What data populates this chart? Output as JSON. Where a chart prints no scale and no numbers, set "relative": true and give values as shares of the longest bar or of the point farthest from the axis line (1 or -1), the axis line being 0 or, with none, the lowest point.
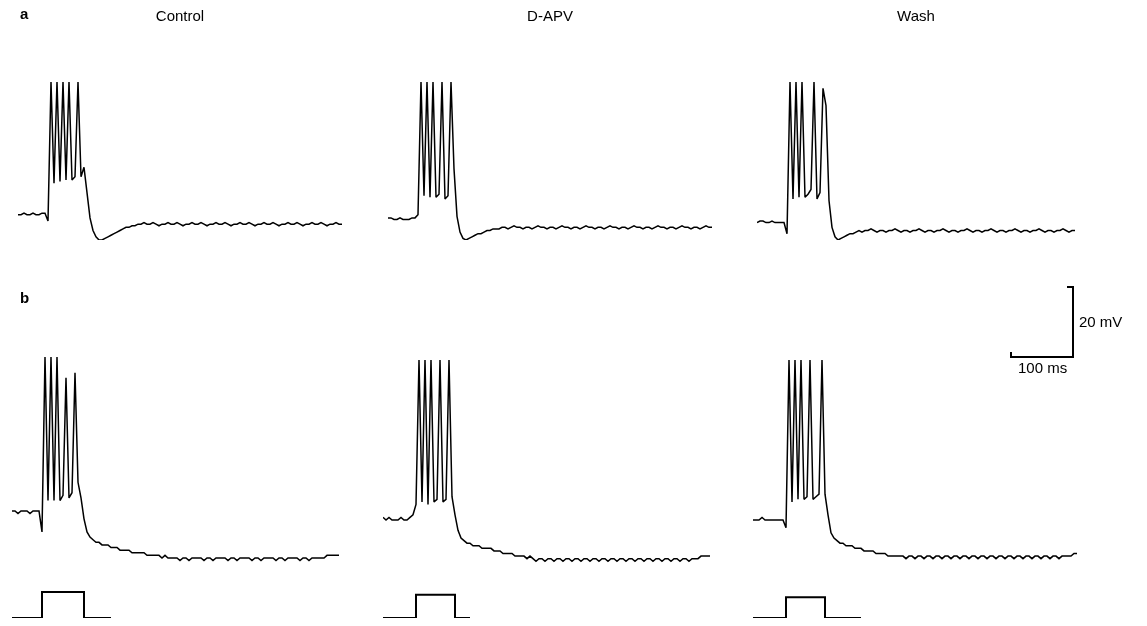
{
  "chart_data": [
    {
      "type": "line",
      "title": "Control",
      "relative": true,
      "annotations": [
        "a"
      ],
      "categories": [
        null,
        null,
        null,
        null,
        null,
        null,
        null,
        null,
        null,
        null,
        null,
        null,
        null,
        null,
        null,
        null,
        null,
        null,
        null,
        null,
        null,
        null,
        null,
        null,
        null,
        null,
        null,
        null,
        null,
        null,
        null,
        null,
        null,
        null,
        null,
        null,
        null,
        null,
        null,
        null,
        null,
        null,
        null,
        null,
        null,
        null,
        null,
        null,
        null,
        null,
        null,
        null,
        null,
        null,
        null,
        null,
        null,
        null,
        null,
        null,
        null,
        null,
        null,
        null,
        null,
        null,
        null,
        null,
        null,
        null,
        null,
        null,
        null,
        null,
        null,
        null,
        null,
        null,
        null,
        null,
        null,
        null,
        null,
        null,
        null,
        null,
        null,
        null,
        null,
        null,
        null,
        null,
        null,
        null,
        null,
        null,
        null,
        null,
        null,
        null,
        null,
        null,
        null,
        null,
        null,
        null,
        null,
        null,
        null
      ],
      "series": [
        {
          "color": "#000000",
          "values": [
            0.16,
            0.16,
            0.17,
            0.16,
            0.16,
            0.17,
            0.16,
            0.16,
            0.17,
            0.17,
            0.12,
            1,
            0.36,
            1,
            0.37,
            1,
            0.38,
            1,
            0.38,
            0.4,
            1,
            0.4,
            0.46,
            0.3,
            0.14,
            0.06,
            0.02,
            0,
            0,
            0.01,
            0.02,
            0.03,
            0.04,
            0.05,
            0.06,
            0.07,
            0.08,
            0.08,
            0.09,
            0.09,
            0.1,
            0.1,
            0.11,
            0.1,
            0.1,
            0.11,
            0.1,
            0.09,
            0.1,
            0.1,
            0.11,
            0.1,
            0.1,
            0.11,
            0.1,
            0.09,
            0.1,
            0.1,
            0.11,
            0.1,
            0.1,
            0.11,
            0.1,
            0.09,
            0.1,
            0.1,
            0.11,
            0.1,
            0.1,
            0.11,
            0.1,
            0.09,
            0.1,
            0.1,
            0.11,
            0.1,
            0.1,
            0.11,
            0.1,
            0.09,
            0.1,
            0.1,
            0.11,
            0.1,
            0.1,
            0.11,
            0.1,
            0.09,
            0.1,
            0.1,
            0.11,
            0.1,
            0.1,
            0.11,
            0.1,
            0.09,
            0.1,
            0.1,
            0.11,
            0.1,
            0.1,
            0.11,
            0.1,
            0.09,
            0.1,
            0.1,
            0.11,
            0.1,
            0.1
          ]
        }
      ]
    },
    {
      "type": "line",
      "title": "D-APV",
      "relative": true,
      "categories": [
        null,
        null,
        null,
        null,
        null,
        null,
        null,
        null,
        null,
        null,
        null,
        null,
        null,
        null,
        null,
        null,
        null,
        null,
        null,
        null,
        null,
        null,
        null,
        null,
        null,
        null,
        null,
        null,
        null,
        null,
        null,
        null,
        null,
        null,
        null,
        null,
        null,
        null,
        null,
        null,
        null,
        null,
        null,
        null,
        null,
        null,
        null,
        null,
        null,
        null,
        null,
        null,
        null,
        null,
        null,
        null,
        null,
        null,
        null,
        null,
        null,
        null,
        null,
        null,
        null,
        null,
        null,
        null,
        null,
        null,
        null,
        null,
        null,
        null,
        null,
        null,
        null,
        null,
        null,
        null,
        null,
        null,
        null,
        null,
        null,
        null,
        null,
        null,
        null,
        null,
        null,
        null,
        null,
        null,
        null,
        null,
        null,
        null,
        null,
        null,
        null,
        null,
        null,
        null,
        null,
        null,
        null,
        null,
        null
      ],
      "series": [
        {
          "color": "#000000",
          "values": [
            0.14,
            0.14,
            0.13,
            0.13,
            0.14,
            0.13,
            0.13,
            0.13,
            0.14,
            0.14,
            0.16,
            1,
            0.28,
            1,
            0.27,
            1,
            0.27,
            0.29,
            1,
            0.26,
            0.28,
            1,
            0.45,
            0.15,
            0.05,
            0.01,
            0,
            0.01,
            0.02,
            0.03,
            0.04,
            0.04,
            0.05,
            0.06,
            0.06,
            0.07,
            0.07,
            0.07,
            0.08,
            0.08,
            0.07,
            0.08,
            0.09,
            0.08,
            0.08,
            0.07,
            0.08,
            0.08,
            0.07,
            0.08,
            0.09,
            0.08,
            0.08,
            0.07,
            0.08,
            0.08,
            0.07,
            0.08,
            0.09,
            0.08,
            0.08,
            0.07,
            0.08,
            0.08,
            0.07,
            0.08,
            0.09,
            0.08,
            0.08,
            0.07,
            0.08,
            0.08,
            0.07,
            0.08,
            0.09,
            0.08,
            0.08,
            0.07,
            0.08,
            0.08,
            0.07,
            0.08,
            0.09,
            0.08,
            0.08,
            0.07,
            0.08,
            0.08,
            0.07,
            0.08,
            0.09,
            0.08,
            0.08,
            0.07,
            0.08,
            0.08,
            0.07,
            0.08,
            0.09,
            0.08,
            0.08,
            0.07,
            0.08,
            0.08,
            0.07,
            0.08,
            0.09,
            0.08,
            0.08
          ]
        }
      ]
    },
    {
      "type": "line",
      "title": "Wash",
      "relative": true,
      "categories": [
        null,
        null,
        null,
        null,
        null,
        null,
        null,
        null,
        null,
        null,
        null,
        null,
        null,
        null,
        null,
        null,
        null,
        null,
        null,
        null,
        null,
        null,
        null,
        null,
        null,
        null,
        null,
        null,
        null,
        null,
        null,
        null,
        null,
        null,
        null,
        null,
        null,
        null,
        null,
        null,
        null,
        null,
        null,
        null,
        null,
        null,
        null,
        null,
        null,
        null,
        null,
        null,
        null,
        null,
        null,
        null,
        null,
        null,
        null,
        null,
        null,
        null,
        null,
        null,
        null,
        null,
        null,
        null,
        null,
        null,
        null,
        null,
        null,
        null,
        null,
        null,
        null,
        null,
        null,
        null,
        null,
        null,
        null,
        null,
        null,
        null,
        null,
        null,
        null,
        null,
        null,
        null,
        null,
        null,
        null,
        null,
        null,
        null,
        null,
        null,
        null,
        null,
        null,
        null,
        null,
        null,
        null
      ],
      "series": [
        {
          "color": "#000000",
          "values": [
            0.11,
            0.12,
            0.12,
            0.11,
            0.11,
            0.12,
            0.11,
            0.11,
            0.11,
            0.11,
            0.04,
            1,
            0.26,
            1,
            0.27,
            1,
            0.27,
            0.29,
            0.32,
            1,
            0.26,
            0.3,
            0.96,
            0.85,
            0.25,
            0.08,
            0.02,
            0,
            0.01,
            0.02,
            0.03,
            0.04,
            0.04,
            0.05,
            0.06,
            0.05,
            0.06,
            0.06,
            0.07,
            0.06,
            0.05,
            0.06,
            0.06,
            0.05,
            0.06,
            0.06,
            0.07,
            0.06,
            0.05,
            0.06,
            0.06,
            0.05,
            0.06,
            0.06,
            0.07,
            0.06,
            0.05,
            0.06,
            0.06,
            0.05,
            0.06,
            0.06,
            0.07,
            0.06,
            0.05,
            0.06,
            0.06,
            0.05,
            0.06,
            0.06,
            0.07,
            0.06,
            0.05,
            0.06,
            0.06,
            0.05,
            0.06,
            0.06,
            0.07,
            0.06,
            0.05,
            0.06,
            0.06,
            0.05,
            0.06,
            0.06,
            0.07,
            0.06,
            0.05,
            0.06,
            0.06,
            0.05,
            0.06,
            0.06,
            0.07,
            0.06,
            0.05,
            0.06,
            0.06,
            0.05,
            0.06,
            0.06,
            0.07,
            0.06,
            0.05,
            0.06,
            0.06
          ]
        }
      ]
    },
    {
      "type": "line",
      "relative": true,
      "annotations": [
        "b"
      ],
      "categories": [
        null,
        null,
        null,
        null,
        null,
        null,
        null,
        null,
        null,
        null,
        null,
        null,
        null,
        null,
        null,
        null,
        null,
        null,
        null,
        null,
        null,
        null,
        null,
        null,
        null,
        null,
        null,
        null,
        null,
        null,
        null,
        null,
        null,
        null,
        null,
        null,
        null,
        null,
        null,
        null,
        null,
        null,
        null,
        null,
        null,
        null,
        null,
        null,
        null,
        null,
        null,
        null,
        null,
        null,
        null,
        null,
        null,
        null,
        null,
        null,
        null,
        null,
        null,
        null,
        null,
        null,
        null,
        null,
        null,
        null,
        null,
        null,
        null,
        null,
        null,
        null,
        null,
        null,
        null,
        null,
        null,
        null,
        null,
        null,
        null,
        null,
        null,
        null,
        null,
        null,
        null,
        null,
        null,
        null,
        null,
        null,
        null,
        null,
        null,
        null,
        null,
        null,
        null,
        null,
        null,
        null,
        null,
        null,
        null,
        null
      ],
      "series": [
        {
          "color": "#000000",
          "values": [
            0.41,
            0.41,
            0.4,
            0.41,
            0.41,
            0.41,
            0.4,
            0.41,
            0.41,
            0.41,
            0.33,
            1,
            0.45,
            1,
            0.45,
            1,
            0.45,
            0.47,
            0.92,
            0.46,
            0.48,
            0.94,
            0.52,
            0.46,
            0.38,
            0.33,
            0.31,
            0.3,
            0.29,
            0.29,
            0.28,
            0.28,
            0.28,
            0.27,
            0.27,
            0.27,
            0.26,
            0.26,
            0.26,
            0.26,
            0.25,
            0.25,
            0.25,
            0.25,
            0.25,
            0.24,
            0.24,
            0.24,
            0.24,
            0.24,
            0.23,
            0.24,
            0.23,
            0.23,
            0.23,
            0.23,
            0.22,
            0.23,
            0.23,
            0.22,
            0.23,
            0.23,
            0.23,
            0.23,
            0.22,
            0.23,
            0.23,
            0.22,
            0.23,
            0.23,
            0.23,
            0.23,
            0.22,
            0.23,
            0.23,
            0.22,
            0.23,
            0.23,
            0.23,
            0.23,
            0.22,
            0.23,
            0.23,
            0.22,
            0.23,
            0.23,
            0.23,
            0.23,
            0.22,
            0.23,
            0.23,
            0.22,
            0.23,
            0.23,
            0.23,
            0.23,
            0.22,
            0.23,
            0.23,
            0.22,
            0.23,
            0.23,
            0.23,
            0.23,
            0.23,
            0.24,
            0.24,
            0.24,
            0.24,
            0.24
          ]
        },
        {
          "type": "step",
          "color": "#000000",
          "values": [
            0,
            0,
            0,
            0,
            0,
            0,
            0,
            0,
            0,
            0,
            0.1,
            0.1,
            0.1,
            0.1,
            0.1,
            0.1,
            0.1,
            0.1,
            0.1,
            0.1,
            0.1,
            0.1,
            0.1,
            0.1,
            0,
            0,
            0,
            0,
            0,
            0,
            0,
            0,
            0,
            0,
            null,
            null,
            null,
            null,
            null,
            null,
            null,
            null,
            null,
            null,
            null,
            null,
            null,
            null,
            null,
            null,
            null,
            null,
            null,
            null,
            null,
            null,
            null,
            null,
            null,
            null,
            null,
            null,
            null,
            null,
            null,
            null,
            null,
            null,
            null,
            null,
            null,
            null,
            null,
            null,
            null,
            null,
            null,
            null,
            null,
            null,
            null,
            null,
            null,
            null,
            null,
            null,
            null,
            null,
            null,
            null,
            null,
            null,
            null,
            null,
            null,
            null,
            null,
            null,
            null,
            null,
            null,
            null,
            null,
            null,
            null,
            null,
            null,
            null,
            null,
            null
          ]
        }
      ]
    },
    {
      "type": "line",
      "relative": true,
      "categories": [
        null,
        null,
        null,
        null,
        null,
        null,
        null,
        null,
        null,
        null,
        null,
        null,
        null,
        null,
        null,
        null,
        null,
        null,
        null,
        null,
        null,
        null,
        null,
        null,
        null,
        null,
        null,
        null,
        null,
        null,
        null,
        null,
        null,
        null,
        null,
        null,
        null,
        null,
        null,
        null,
        null,
        null,
        null,
        null,
        null,
        null,
        null,
        null,
        null,
        null,
        null,
        null,
        null,
        null,
        null,
        null,
        null,
        null,
        null,
        null,
        null,
        null,
        null,
        null,
        null,
        null,
        null,
        null,
        null,
        null,
        null,
        null,
        null,
        null,
        null,
        null,
        null,
        null,
        null,
        null,
        null,
        null,
        null,
        null,
        null,
        null,
        null,
        null,
        null,
        null,
        null,
        null,
        null,
        null,
        null,
        null,
        null,
        null,
        null,
        null,
        null,
        null,
        null,
        null,
        null,
        null,
        null,
        null,
        null,
        null
      ],
      "series": [
        {
          "color": "#000000",
          "values": [
            0.39,
            0.38,
            0.39,
            0.38,
            0.38,
            0.38,
            0.39,
            0.38,
            0.38,
            0.39,
            0.4,
            0.44,
            1,
            0.45,
            1,
            0.44,
            1,
            0.45,
            0.46,
            1,
            0.45,
            0.46,
            1,
            0.47,
            0.4,
            0.34,
            0.31,
            0.3,
            0.29,
            0.29,
            0.28,
            0.28,
            0.28,
            0.27,
            0.27,
            0.27,
            0.27,
            0.26,
            0.26,
            0.26,
            0.25,
            0.25,
            0.25,
            0.25,
            0.24,
            0.24,
            0.24,
            0.24,
            0.23,
            0.24,
            0.23,
            0.22,
            0.23,
            0.23,
            0.22,
            0.23,
            0.23,
            0.22,
            0.23,
            0.23,
            0.22,
            0.23,
            0.23,
            0.22,
            0.23,
            0.23,
            0.22,
            0.23,
            0.23,
            0.22,
            0.23,
            0.23,
            0.22,
            0.23,
            0.23,
            0.22,
            0.23,
            0.23,
            0.22,
            0.23,
            0.23,
            0.22,
            0.23,
            0.23,
            0.22,
            0.23,
            0.23,
            0.22,
            0.23,
            0.23,
            0.22,
            0.23,
            0.23,
            0.22,
            0.23,
            0.23,
            0.22,
            0.23,
            0.23,
            0.22,
            0.23,
            0.23,
            0.22,
            0.23,
            0.23,
            0.23,
            0.24,
            0.24,
            0.24,
            0.24
          ]
        },
        {
          "type": "step",
          "color": "#000000",
          "values": [
            0,
            0,
            0,
            0,
            0,
            0,
            0,
            0,
            0,
            0,
            0,
            0.09,
            0.09,
            0.09,
            0.09,
            0.09,
            0.09,
            0.09,
            0.09,
            0.09,
            0.09,
            0.09,
            0.09,
            0.09,
            0,
            0,
            0,
            0,
            0,
            0,
            null,
            null,
            null,
            null,
            null,
            null,
            null,
            null,
            null,
            null,
            null,
            null,
            null,
            null,
            null,
            null,
            null,
            null,
            null,
            null,
            null,
            null,
            null,
            null,
            null,
            null,
            null,
            null,
            null,
            null,
            null,
            null,
            null,
            null,
            null,
            null,
            null,
            null,
            null,
            null,
            null,
            null,
            null,
            null,
            null,
            null,
            null,
            null,
            null,
            null,
            null,
            null,
            null,
            null,
            null,
            null,
            null,
            null,
            null,
            null,
            null,
            null,
            null,
            null,
            null,
            null,
            null,
            null,
            null,
            null,
            null,
            null,
            null,
            null,
            null,
            null,
            null,
            null,
            null,
            null
          ]
        }
      ]
    },
    {
      "type": "line",
      "relative": true,
      "annotations": [
        "20 mV",
        "100 ms"
      ],
      "categories": [
        null,
        null,
        null,
        null,
        null,
        null,
        null,
        null,
        null,
        null,
        null,
        null,
        null,
        null,
        null,
        null,
        null,
        null,
        null,
        null,
        null,
        null,
        null,
        null,
        null,
        null,
        null,
        null,
        null,
        null,
        null,
        null,
        null,
        null,
        null,
        null,
        null,
        null,
        null,
        null,
        null,
        null,
        null,
        null,
        null,
        null,
        null,
        null,
        null,
        null,
        null,
        null,
        null,
        null,
        null,
        null,
        null,
        null,
        null,
        null,
        null,
        null,
        null,
        null,
        null,
        null,
        null,
        null,
        null,
        null,
        null,
        null,
        null,
        null,
        null,
        null,
        null,
        null,
        null,
        null,
        null,
        null,
        null,
        null,
        null,
        null,
        null,
        null,
        null,
        null,
        null,
        null,
        null,
        null,
        null,
        null,
        null,
        null,
        null,
        null,
        null,
        null,
        null,
        null,
        null,
        null,
        null,
        null,
        null
      ],
      "series": [
        {
          "color": "#000000",
          "values": [
            0.38,
            0.38,
            0.38,
            0.39,
            0.38,
            0.38,
            0.38,
            0.38,
            0.38,
            0.38,
            0.38,
            0.35,
            1,
            0.45,
            1,
            0.46,
            1,
            0.46,
            0.47,
            1,
            0.46,
            0.47,
            0.48,
            1,
            0.48,
            0.4,
            0.33,
            0.31,
            0.3,
            0.29,
            0.29,
            0.28,
            0.28,
            0.28,
            0.27,
            0.27,
            0.27,
            0.26,
            0.26,
            0.26,
            0.26,
            0.25,
            0.25,
            0.25,
            0.25,
            0.24,
            0.24,
            0.24,
            0.24,
            0.24,
            0.24,
            0.23,
            0.24,
            0.24,
            0.23,
            0.24,
            0.24,
            0.23,
            0.24,
            0.24,
            0.23,
            0.24,
            0.24,
            0.23,
            0.24,
            0.24,
            0.23,
            0.24,
            0.24,
            0.23,
            0.24,
            0.24,
            0.23,
            0.24,
            0.24,
            0.23,
            0.24,
            0.24,
            0.23,
            0.24,
            0.24,
            0.23,
            0.24,
            0.24,
            0.23,
            0.24,
            0.24,
            0.23,
            0.24,
            0.24,
            0.23,
            0.24,
            0.24,
            0.23,
            0.24,
            0.24,
            0.23,
            0.24,
            0.24,
            0.23,
            0.24,
            0.24,
            0.23,
            0.24,
            0.24,
            0.24,
            0.24,
            0.25,
            0.25
          ]
        },
        {
          "type": "step",
          "color": "#000000",
          "values": [
            0,
            0,
            0,
            0,
            0,
            0,
            0,
            0,
            0,
            0,
            0,
            0.08,
            0.08,
            0.08,
            0.08,
            0.08,
            0.08,
            0.08,
            0.08,
            0.08,
            0.08,
            0.08,
            0.08,
            0.08,
            0,
            0,
            0,
            0,
            0,
            0,
            0,
            0,
            0,
            0,
            0,
            0,
            0,
            null,
            null,
            null,
            null,
            null,
            null,
            null,
            null,
            null,
            null,
            null,
            null,
            null,
            null,
            null,
            null,
            null,
            null,
            null,
            null,
            null,
            null,
            null,
            null,
            null,
            null,
            null,
            null,
            null,
            null,
            null,
            null,
            null,
            null,
            null,
            null,
            null,
            null,
            null,
            null,
            null,
            null,
            null,
            null,
            null,
            null,
            null,
            null,
            null,
            null,
            null,
            null,
            null,
            null,
            null,
            null,
            null,
            null,
            null,
            null,
            null,
            null,
            null,
            null,
            null,
            null,
            null,
            null,
            null,
            null,
            null,
            null
          ]
        }
      ]
    }
  ]
}
